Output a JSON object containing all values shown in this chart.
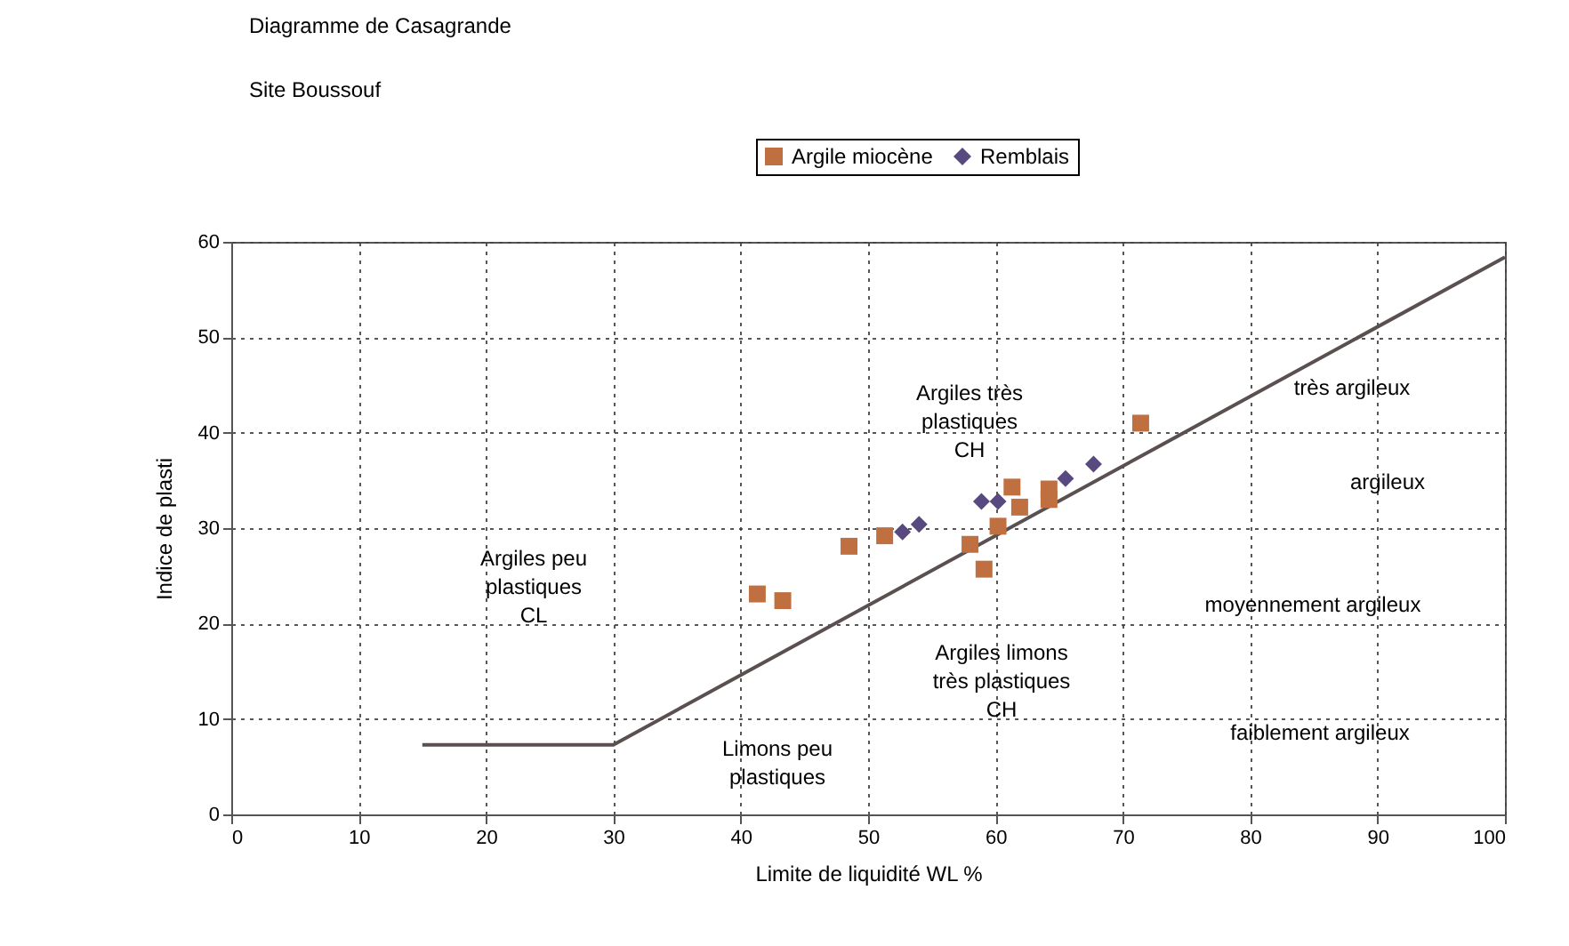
{
  "chart_data": {
    "type": "scatter",
    "title": "Diagramme de Casagrande",
    "subtitle": "Site Boussouf",
    "xlabel": "Limite de liquidité WL %",
    "ylabel": "Indice de plasti",
    "xlim": [
      0,
      100
    ],
    "xticks": [
      0,
      10,
      20,
      30,
      40,
      50,
      60,
      70,
      80,
      90,
      100
    ],
    "ylim": [
      0,
      60
    ],
    "yticks": [
      0,
      10,
      20,
      30,
      40,
      50,
      60
    ],
    "grid": true,
    "legend": "top",
    "series": [
      {
        "type": "line",
        "color": "#5a5050",
        "x": [
          15,
          30,
          100
        ],
        "values": [
          7.3,
          7.3,
          58.4
        ],
        "marker": "none",
        "line_style": "solid"
      },
      {
        "name": "Argile miocène",
        "color": "#c07040",
        "marker": "square",
        "x": [
          41.3,
          43.3,
          48.5,
          51.3,
          58.0,
          59.1,
          60.2,
          61.3,
          61.9,
          64.2,
          64.2,
          71.4
        ],
        "values": [
          23.1,
          22.4,
          28.1,
          29.2,
          28.3,
          25.7,
          30.2,
          34.3,
          32.2,
          34.1,
          33.0,
          41.0
        ]
      },
      {
        "name": "Remblais",
        "color": "#584a80",
        "marker": "diamond",
        "x": [
          52.7,
          54.0,
          58.9,
          60.2,
          65.5,
          67.7
        ],
        "values": [
          29.6,
          30.4,
          32.8,
          32.8,
          35.2,
          36.7
        ]
      }
    ],
    "annotations": [
      "Argiles très\nplastiques\nCH",
      "Argiles peu\nplastiques\nCL",
      "Argiles limons\ntrès plastiques\nCH",
      "Limons peu\nplastiques",
      "très argileux",
      "argileux",
      "moyennement argileux",
      "faiblement argileux"
    ]
  }
}
